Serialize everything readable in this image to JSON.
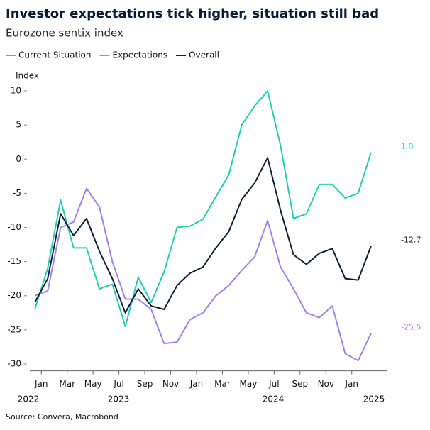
{
  "chart_data": {
    "type": "line",
    "title": "Investor expectations tick higher, situation still bad",
    "subtitle": "Eurozone sentix index",
    "y_label": "Index",
    "source": "Source: Convera, Macrobond",
    "categories": [
      null,
      "Jan",
      null,
      "Mar",
      null,
      "May",
      null,
      "Jul",
      null,
      "Sep",
      null,
      "Nov",
      null,
      "Jan",
      null,
      "Mar",
      null,
      "May",
      null,
      "Jul",
      null,
      "Sep",
      null,
      "Nov",
      null,
      "Jan",
      null
    ],
    "years": [
      "2022",
      "2023",
      "2024",
      "2025"
    ],
    "ylim": [
      -31,
      11
    ],
    "yticks": [
      -30,
      -25,
      -20,
      -15,
      -10,
      -5,
      0,
      5,
      10
    ],
    "series": [
      {
        "name": "Current Situation",
        "color": "#9b84ee",
        "values": [
          -20,
          -19.3,
          -10,
          -9.2,
          -4.3,
          -7,
          -15,
          -20.5,
          -20.5,
          -22,
          -27,
          -26.8,
          -23.5,
          -22.5,
          -20,
          -18.5,
          -16.3,
          -14.3,
          -9,
          -15.8,
          -19,
          -22.5,
          -23.2,
          -21.5,
          -28.5,
          -29.5,
          -25.5
        ],
        "value_labels": [
          null,
          null,
          null,
          null,
          null,
          null,
          null,
          null,
          null,
          null,
          null,
          null,
          null,
          null,
          null,
          null,
          null,
          null,
          null,
          null,
          null,
          null,
          null,
          null,
          null,
          null,
          "-25.5"
        ]
      },
      {
        "name": "Expectations",
        "color": "#24cdb2",
        "values": [
          -22,
          -16,
          -6,
          -13,
          -13,
          -19,
          -18.3,
          -24.5,
          -17.3,
          -21,
          -16.5,
          -10,
          -9.8,
          -8.8,
          -5.5,
          -2.3,
          5,
          7.8,
          10,
          2,
          -8.7,
          -8,
          -3.7,
          -3.7,
          -5.7,
          -5,
          1.0
        ],
        "value_labels": [
          null,
          null,
          null,
          null,
          null,
          null,
          null,
          null,
          null,
          null,
          null,
          null,
          null,
          null,
          null,
          null,
          null,
          null,
          null,
          null,
          null,
          null,
          null,
          null,
          null,
          null,
          "1.0"
        ]
      },
      {
        "name": "Overall",
        "color": "#0e1f35",
        "values": [
          -21,
          -17.5,
          -8,
          -11.2,
          -8.7,
          -13.5,
          -17.5,
          -22.5,
          -19,
          -21.5,
          -22,
          -18.5,
          -16.7,
          -15.8,
          -13,
          -10.6,
          -5.9,
          -3.5,
          0.2,
          -7.5,
          -14,
          -15.4,
          -13.8,
          -13.1,
          -17.5,
          -17.7,
          -12.7
        ],
        "value_labels": [
          null,
          null,
          null,
          null,
          null,
          null,
          null,
          null,
          null,
          null,
          null,
          null,
          null,
          null,
          null,
          null,
          null,
          null,
          null,
          null,
          null,
          null,
          null,
          null,
          null,
          null,
          "-12.7"
        ]
      }
    ]
  }
}
